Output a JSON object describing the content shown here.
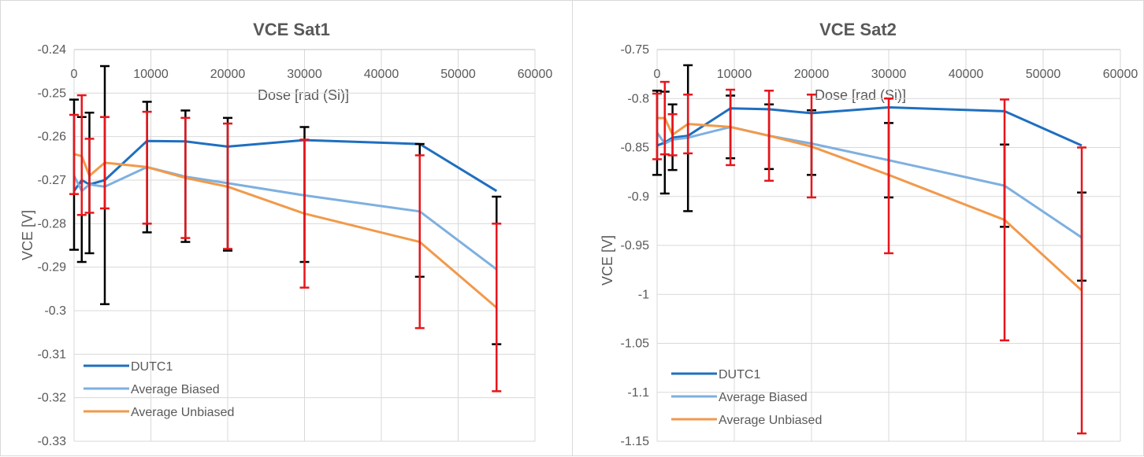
{
  "chart_data": [
    {
      "type": "line",
      "title": "VCE Sat1",
      "xlabel": "Dose [rad (Si)]",
      "ylabel": "VCE [V]",
      "xlim": [
        0,
        60000
      ],
      "ylim": [
        -0.33,
        -0.24
      ],
      "x_ticks": [
        0,
        10000,
        20000,
        30000,
        40000,
        50000,
        60000
      ],
      "y_ticks": [
        -0.24,
        -0.25,
        -0.26,
        -0.27,
        -0.28,
        -0.29,
        -0.3,
        -0.31,
        -0.32,
        -0.33
      ],
      "x_tick_labels": [
        "0",
        "10000",
        "20000",
        "30000",
        "40000",
        "50000",
        "60000"
      ],
      "y_tick_labels": [
        "-0.24",
        "-0.25",
        "-0.26",
        "-0.27",
        "-0.28",
        "-0.29",
        "-0.3",
        "-0.31",
        "-0.32",
        "-0.33"
      ],
      "gridlines": true,
      "legend_position": "bottom-left",
      "series": [
        {
          "name": "DUTC1",
          "color": "#1f6fbf",
          "error_color": "#000000",
          "points": [
            {
              "x": 0,
              "y": -0.2725,
              "lo": -0.286,
              "hi": -0.2515
            },
            {
              "x": 1000,
              "y": -0.27,
              "lo": -0.2888,
              "hi": -0.2555
            },
            {
              "x": 2000,
              "y": -0.271,
              "lo": -0.2868,
              "hi": -0.2545
            },
            {
              "x": 4000,
              "y": -0.27,
              "lo": -0.2985,
              "hi": -0.2438
            },
            {
              "x": 9500,
              "y": -0.261,
              "lo": -0.282,
              "hi": -0.252
            },
            {
              "x": 14500,
              "y": -0.2611,
              "lo": -0.2842,
              "hi": -0.254
            },
            {
              "x": 20000,
              "y": -0.2623,
              "lo": -0.2862,
              "hi": -0.2557
            },
            {
              "x": 30000,
              "y": -0.2608,
              "lo": -0.2888,
              "hi": -0.2578
            },
            {
              "x": 45000,
              "y": -0.2617,
              "lo": -0.2922,
              "hi": -0.2617
            },
            {
              "x": 55000,
              "y": -0.2725,
              "lo": -0.3077,
              "hi": -0.2738
            }
          ]
        },
        {
          "name": "Average Biased",
          "color": "#7eb0e0",
          "points": [
            {
              "x": 0,
              "y": -0.269
            },
            {
              "x": 1000,
              "y": -0.2725
            },
            {
              "x": 2000,
              "y": -0.271
            },
            {
              "x": 4000,
              "y": -0.2715
            },
            {
              "x": 9500,
              "y": -0.267
            },
            {
              "x": 14500,
              "y": -0.2692
            },
            {
              "x": 20000,
              "y": -0.2707
            },
            {
              "x": 30000,
              "y": -0.2735
            },
            {
              "x": 45000,
              "y": -0.2772
            },
            {
              "x": 55000,
              "y": -0.2905
            }
          ]
        },
        {
          "name": "Average Unbiased",
          "color": "#f2994a",
          "error_color": "#e8151b",
          "points": [
            {
              "x": 0,
              "y": -0.264,
              "lo": -0.2732,
              "hi": -0.255
            },
            {
              "x": 1000,
              "y": -0.2645,
              "lo": -0.278,
              "hi": -0.2505
            },
            {
              "x": 2000,
              "y": -0.269,
              "lo": -0.2775,
              "hi": -0.2605
            },
            {
              "x": 4000,
              "y": -0.266,
              "lo": -0.2765,
              "hi": -0.2555
            },
            {
              "x": 9500,
              "y": -0.267,
              "lo": -0.28,
              "hi": -0.2543
            },
            {
              "x": 14500,
              "y": -0.2695,
              "lo": -0.2833,
              "hi": -0.2557
            },
            {
              "x": 20000,
              "y": -0.2715,
              "lo": -0.2858,
              "hi": -0.257
            },
            {
              "x": 30000,
              "y": -0.2777,
              "lo": -0.2947,
              "hi": -0.2607
            },
            {
              "x": 45000,
              "y": -0.2842,
              "lo": -0.304,
              "hi": -0.2643
            },
            {
              "x": 55000,
              "y": -0.2993,
              "lo": -0.3185,
              "hi": -0.28
            }
          ]
        }
      ]
    },
    {
      "type": "line",
      "title": "VCE Sat2",
      "xlabel": "Dose [rad (Si)]",
      "ylabel": "VCE [V]",
      "xlim": [
        0,
        60000
      ],
      "ylim": [
        -1.15,
        -0.75
      ],
      "x_ticks": [
        0,
        10000,
        20000,
        30000,
        40000,
        50000,
        60000
      ],
      "y_ticks": [
        -0.75,
        -0.8,
        -0.85,
        -0.9,
        -0.95,
        -1.0,
        -1.05,
        -1.1,
        -1.15
      ],
      "x_tick_labels": [
        "0",
        "10000",
        "20000",
        "30000",
        "40000",
        "50000",
        "60000"
      ],
      "y_tick_labels": [
        "-0.75",
        "-0.8",
        "-0.85",
        "-0.9",
        "-0.95",
        "-1",
        "-1.05",
        "-1.1",
        "-1.15"
      ],
      "gridlines": true,
      "legend_position": "bottom-left",
      "series": [
        {
          "name": "DUTC1",
          "color": "#1f6fbf",
          "error_color": "#000000",
          "points": [
            {
              "x": 0,
              "y": -0.848,
              "lo": -0.878,
              "hi": -0.792
            },
            {
              "x": 1000,
              "y": -0.845,
              "lo": -0.897,
              "hi": -0.793
            },
            {
              "x": 2000,
              "y": -0.84,
              "lo": -0.873,
              "hi": -0.806
            },
            {
              "x": 4000,
              "y": -0.838,
              "lo": -0.915,
              "hi": -0.766
            },
            {
              "x": 9500,
              "y": -0.81,
              "lo": -0.861,
              "hi": -0.797
            },
            {
              "x": 14500,
              "y": -0.811,
              "lo": -0.872,
              "hi": -0.806
            },
            {
              "x": 20000,
              "y": -0.815,
              "lo": -0.878,
              "hi": -0.812
            },
            {
              "x": 30000,
              "y": -0.809,
              "lo": -0.901,
              "hi": -0.825
            },
            {
              "x": 45000,
              "y": -0.813,
              "lo": -0.931,
              "hi": -0.847
            },
            {
              "x": 55000,
              "y": -0.848,
              "lo": -0.986,
              "hi": -0.896
            }
          ]
        },
        {
          "name": "Average Biased",
          "color": "#7eb0e0",
          "points": [
            {
              "x": 0,
              "y": -0.835
            },
            {
              "x": 1000,
              "y": -0.846
            },
            {
              "x": 2000,
              "y": -0.842
            },
            {
              "x": 4000,
              "y": -0.84
            },
            {
              "x": 9500,
              "y": -0.829
            },
            {
              "x": 14500,
              "y": -0.838
            },
            {
              "x": 20000,
              "y": -0.846
            },
            {
              "x": 30000,
              "y": -0.863
            },
            {
              "x": 45000,
              "y": -0.889
            },
            {
              "x": 55000,
              "y": -0.942
            }
          ]
        },
        {
          "name": "Average Unbiased",
          "color": "#f2994a",
          "error_color": "#e8151b",
          "points": [
            {
              "x": 0,
              "y": -0.82,
              "lo": -0.862,
              "hi": -0.795
            },
            {
              "x": 1000,
              "y": -0.82,
              "lo": -0.857,
              "hi": -0.783
            },
            {
              "x": 2000,
              "y": -0.837,
              "lo": -0.858,
              "hi": -0.816
            },
            {
              "x": 4000,
              "y": -0.826,
              "lo": -0.856,
              "hi": -0.796
            },
            {
              "x": 9500,
              "y": -0.829,
              "lo": -0.868,
              "hi": -0.791
            },
            {
              "x": 14500,
              "y": -0.838,
              "lo": -0.884,
              "hi": -0.792
            },
            {
              "x": 20000,
              "y": -0.849,
              "lo": -0.901,
              "hi": -0.796
            },
            {
              "x": 30000,
              "y": -0.878,
              "lo": -0.958,
              "hi": -0.8
            },
            {
              "x": 45000,
              "y": -0.924,
              "lo": -1.047,
              "hi": -0.801
            },
            {
              "x": 55000,
              "y": -0.996,
              "lo": -1.142,
              "hi": -0.85
            }
          ]
        }
      ]
    }
  ]
}
